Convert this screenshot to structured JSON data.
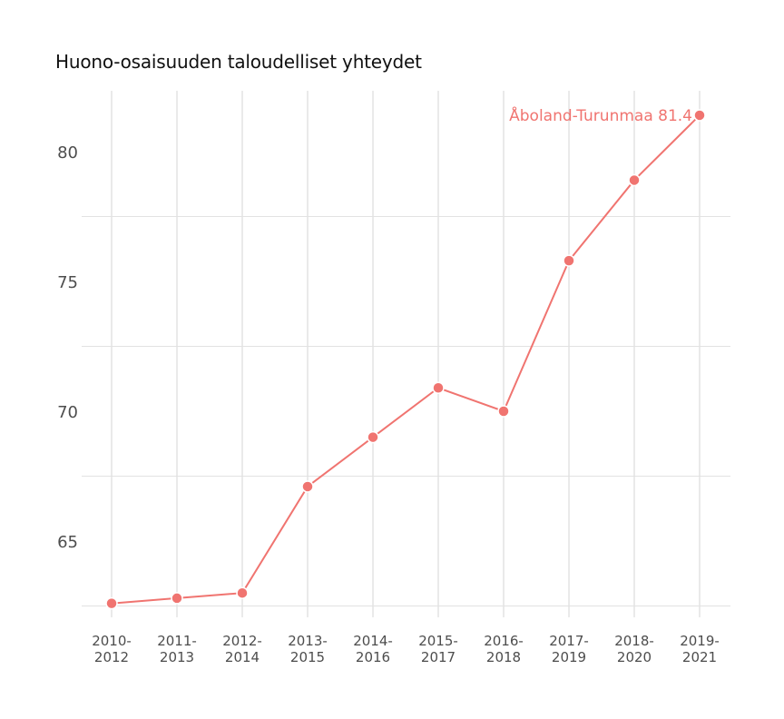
{
  "title": "Huono-osaisuuden taloudelliset yhteydet",
  "colors": {
    "series": "#f07470",
    "grid": "#e2e2e2",
    "tick_text": "#4d4d4d",
    "title_text": "#111111"
  },
  "end_label": "Åboland-Turunmaa 81.4",
  "chart_data": {
    "type": "line",
    "title": "Huono-osaisuuden taloudelliset yhteydet",
    "xlabel": "",
    "ylabel": "",
    "categories": [
      "2010-2012",
      "2011-2013",
      "2012-2014",
      "2013-2015",
      "2014-2016",
      "2015-2017",
      "2016-2018",
      "2017-2019",
      "2018-2020",
      "2019-2021"
    ],
    "series": [
      {
        "name": "Åboland-Turunmaa",
        "values": [
          62.6,
          62.8,
          63.0,
          67.1,
          69.0,
          70.9,
          70.0,
          75.8,
          78.9,
          81.4
        ]
      }
    ],
    "yticks": [
      65,
      70,
      75,
      80
    ],
    "ylim": [
      62.5,
      82.5
    ],
    "grid": true,
    "legend": "none (direct label at last point)",
    "annotations": [
      "Åboland-Turunmaa 81.4"
    ]
  }
}
